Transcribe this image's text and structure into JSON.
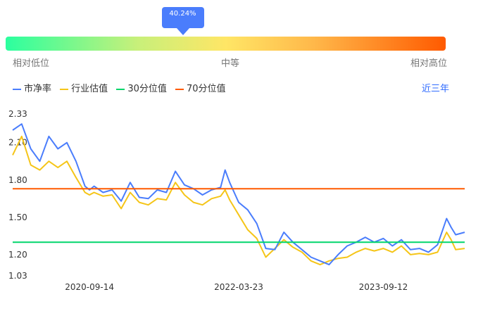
{
  "gauge": {
    "percentile_label": "40.24%",
    "percentile_value": 0.4024,
    "low_label": "相对低位",
    "mid_label": "中等",
    "high_label": "相对高位",
    "colors": [
      "#2bff9f",
      "#ffe666",
      "#ff5a00"
    ]
  },
  "legend": [
    {
      "name": "市净率",
      "color": "#4a7dfc"
    },
    {
      "name": "行业估值",
      "color": "#f5c518"
    },
    {
      "name": "30分位值",
      "color": "#00d66b"
    },
    {
      "name": "70分位值",
      "color": "#ff5a00"
    }
  ],
  "range_button": "近三年",
  "chart_data": {
    "type": "line",
    "y_ticks": [
      2.33,
      2.1,
      1.8,
      1.5,
      1.2,
      1.03
    ],
    "ylim": [
      1.03,
      2.33
    ],
    "x_tick_labels": [
      "2020-09-14",
      "2022-03-23",
      "2023-09-12"
    ],
    "xlim": [
      0,
      100
    ],
    "x_tick_positions": [
      17,
      50,
      82
    ],
    "series": [
      {
        "name": "市净率",
        "color": "#4a7dfc",
        "x": [
          0,
          2,
          4,
          6,
          8,
          10,
          12,
          14,
          16,
          17,
          18,
          20,
          22,
          24,
          26,
          28,
          30,
          32,
          34,
          36,
          38,
          40,
          42,
          44,
          46,
          47,
          48,
          50,
          52,
          54,
          56,
          58,
          60,
          62,
          64,
          66,
          68,
          70,
          72,
          74,
          76,
          78,
          80,
          82,
          84,
          86,
          88,
          90,
          92,
          94,
          96,
          97,
          98,
          100
        ],
        "values": [
          2.2,
          2.25,
          2.05,
          1.95,
          2.15,
          2.05,
          2.1,
          1.95,
          1.75,
          1.72,
          1.75,
          1.7,
          1.72,
          1.63,
          1.78,
          1.66,
          1.65,
          1.72,
          1.7,
          1.87,
          1.76,
          1.73,
          1.68,
          1.72,
          1.74,
          1.88,
          1.78,
          1.62,
          1.56,
          1.45,
          1.25,
          1.24,
          1.38,
          1.3,
          1.24,
          1.18,
          1.15,
          1.12,
          1.2,
          1.27,
          1.3,
          1.34,
          1.3,
          1.33,
          1.27,
          1.32,
          1.24,
          1.25,
          1.22,
          1.28,
          1.49,
          1.42,
          1.36,
          1.38
        ]
      },
      {
        "name": "行业估值",
        "color": "#f5c518",
        "x": [
          0,
          2,
          4,
          6,
          8,
          10,
          12,
          14,
          16,
          17,
          18,
          20,
          22,
          24,
          26,
          28,
          30,
          32,
          34,
          36,
          38,
          40,
          42,
          44,
          46,
          47,
          48,
          50,
          52,
          54,
          56,
          58,
          60,
          62,
          64,
          66,
          68,
          70,
          72,
          74,
          76,
          78,
          80,
          82,
          84,
          86,
          88,
          90,
          92,
          94,
          96,
          97,
          98,
          100
        ],
        "values": [
          2.0,
          2.15,
          1.92,
          1.88,
          1.95,
          1.9,
          1.95,
          1.82,
          1.7,
          1.68,
          1.7,
          1.67,
          1.68,
          1.57,
          1.7,
          1.62,
          1.6,
          1.65,
          1.64,
          1.78,
          1.68,
          1.62,
          1.6,
          1.65,
          1.67,
          1.72,
          1.64,
          1.52,
          1.4,
          1.33,
          1.18,
          1.25,
          1.32,
          1.26,
          1.22,
          1.15,
          1.12,
          1.15,
          1.17,
          1.18,
          1.22,
          1.25,
          1.23,
          1.25,
          1.22,
          1.27,
          1.2,
          1.21,
          1.2,
          1.22,
          1.38,
          1.32,
          1.24,
          1.25
        ]
      },
      {
        "name": "30分位值",
        "color": "#00d66b",
        "x": [
          0,
          100
        ],
        "values": [
          1.3,
          1.3
        ]
      },
      {
        "name": "70分位值",
        "color": "#ff5a00",
        "x": [
          0,
          100
        ],
        "values": [
          1.73,
          1.73
        ]
      }
    ]
  }
}
